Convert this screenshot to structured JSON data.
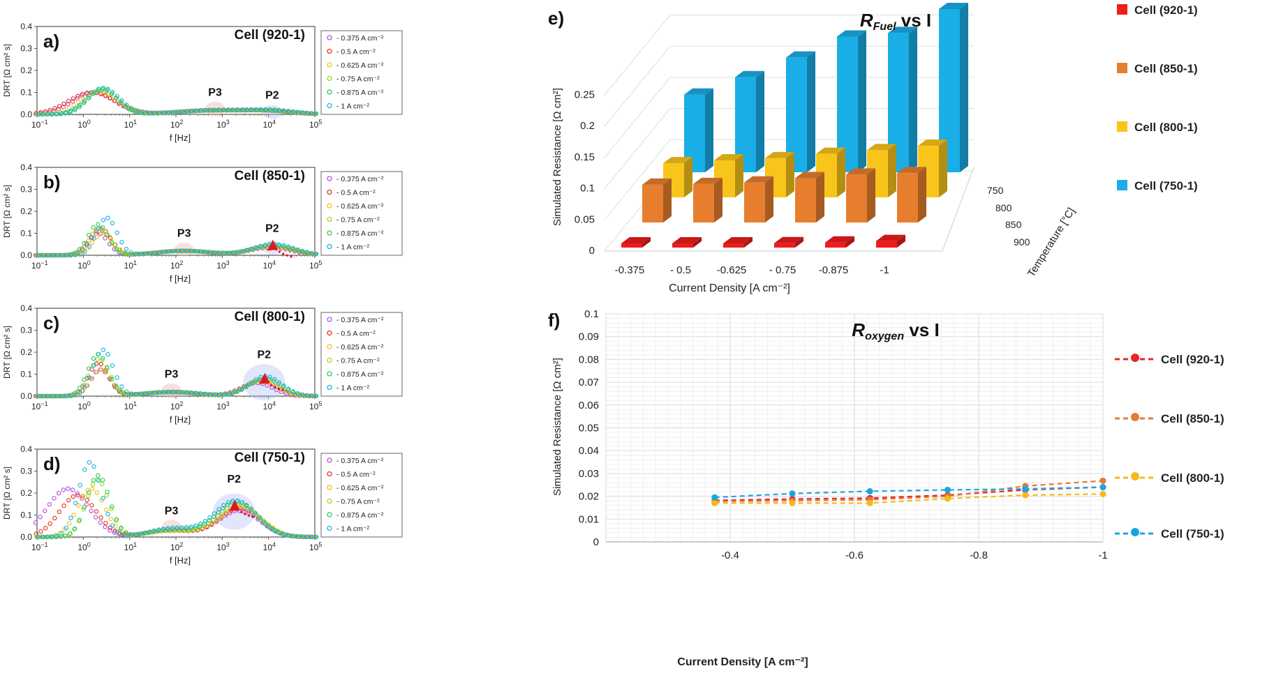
{
  "figure": {
    "series_colors": [
      "#b454e8",
      "#e8372b",
      "#f0c419",
      "#9adc2c",
      "#33cc55",
      "#1fb3e6"
    ],
    "drt_series_labels": [
      "- 0.375 A cm⁻²",
      "- 0.5 A cm⁻²",
      "- 0.625 A cm⁻²",
      "- 0.75 A cm⁻²",
      "- 0.875 A cm⁻²",
      "- 1 A cm⁻²"
    ]
  },
  "chart_data": [
    {
      "type": "scatter",
      "panel": "a)",
      "cell_label": "Cell (920-1)",
      "xlabel": "f [Hz]",
      "ylabel": "DRT [Ω cm² s]",
      "xscale": "log",
      "xlim": [
        0.1,
        100000
      ],
      "ylim": [
        0,
        0.4
      ],
      "yticks": [
        "0.0",
        "0.1",
        "0.2",
        "0.3",
        "0.4"
      ],
      "peak_labels": [
        "P3",
        "P2"
      ],
      "series": [
        {
          "name": "- 0.375 A cm⁻²",
          "peaks": [
            {
              "f": 1.8,
              "h": 0.1,
              "w": 0.45
            },
            {
              "f": 700,
              "h": 0.018,
              "w": 0.8
            },
            {
              "f": 12000,
              "h": 0.012,
              "w": 0.5
            }
          ]
        },
        {
          "name": "- 0.5 A cm⁻²",
          "peaks": [
            {
              "f": 1.6,
              "h": 0.1,
              "w": 0.5
            },
            {
              "f": 700,
              "h": 0.018,
              "w": 0.8
            },
            {
              "f": 12000,
              "h": 0.012,
              "w": 0.5
            }
          ]
        },
        {
          "name": "- 0.625 A cm⁻²",
          "peaks": [
            {
              "f": 2.2,
              "h": 0.105,
              "w": 0.4
            },
            {
              "f": 700,
              "h": 0.018,
              "w": 0.8
            },
            {
              "f": 12000,
              "h": 0.012,
              "w": 0.5
            }
          ]
        },
        {
          "name": "- 0.75 A cm⁻²",
          "peaks": [
            {
              "f": 2.5,
              "h": 0.11,
              "w": 0.35
            },
            {
              "f": 700,
              "h": 0.018,
              "w": 0.8
            },
            {
              "f": 12000,
              "h": 0.012,
              "w": 0.5
            }
          ]
        },
        {
          "name": "- 0.875 A cm⁻²",
          "peaks": [
            {
              "f": 2.5,
              "h": 0.115,
              "w": 0.32
            },
            {
              "f": 700,
              "h": 0.018,
              "w": 0.8
            },
            {
              "f": 12000,
              "h": 0.012,
              "w": 0.5
            }
          ]
        },
        {
          "name": "- 1 A cm⁻²",
          "peaks": [
            {
              "f": 2.5,
              "h": 0.12,
              "w": 0.35
            },
            {
              "f": 700,
              "h": 0.02,
              "w": 0.8
            },
            {
              "f": 12000,
              "h": 0.015,
              "w": 0.5
            }
          ]
        }
      ]
    },
    {
      "type": "scatter",
      "panel": "b)",
      "cell_label": "Cell (850-1)",
      "xlabel": "f [Hz]",
      "ylabel": "DRT [Ω cm² s]",
      "xscale": "log",
      "xlim": [
        0.1,
        100000
      ],
      "ylim": [
        0,
        0.4
      ],
      "yticks": [
        "0.0",
        "0.1",
        "0.2",
        "0.3",
        "0.4"
      ],
      "peak_labels": [
        "P3",
        "P2"
      ],
      "series": [
        {
          "name": "- 0.375 A cm⁻²",
          "peaks": [
            {
              "f": 2.2,
              "h": 0.1,
              "w": 0.22
            },
            {
              "f": 150,
              "h": 0.02,
              "w": 0.6
            },
            {
              "f": 12000,
              "h": 0.035,
              "w": 0.45
            }
          ]
        },
        {
          "name": "- 0.5 A cm⁻²",
          "peaks": [
            {
              "f": 2.5,
              "h": 0.12,
              "w": 0.22
            },
            {
              "f": 150,
              "h": 0.02,
              "w": 0.6
            },
            {
              "f": 12000,
              "h": 0.04,
              "w": 0.45
            }
          ]
        },
        {
          "name": "- 0.625 A cm⁻²",
          "peaks": [
            {
              "f": 2.7,
              "h": 0.1,
              "w": 0.22
            },
            {
              "f": 150,
              "h": 0.02,
              "w": 0.6
            },
            {
              "f": 12000,
              "h": 0.04,
              "w": 0.45
            }
          ]
        },
        {
          "name": "- 0.75 A cm⁻²",
          "peaks": [
            {
              "f": 2.2,
              "h": 0.12,
              "w": 0.22
            },
            {
              "f": 150,
              "h": 0.02,
              "w": 0.6
            },
            {
              "f": 12000,
              "h": 0.045,
              "w": 0.45
            }
          ]
        },
        {
          "name": "- 0.875 A cm⁻²",
          "peaks": [
            {
              "f": 2.0,
              "h": 0.14,
              "w": 0.22
            },
            {
              "f": 150,
              "h": 0.02,
              "w": 0.6
            },
            {
              "f": 12000,
              "h": 0.045,
              "w": 0.45
            }
          ]
        },
        {
          "name": "- 1 A cm⁻²",
          "peaks": [
            {
              "f": 3.0,
              "h": 0.17,
              "w": 0.22
            },
            {
              "f": 150,
              "h": 0.02,
              "w": 0.6
            },
            {
              "f": 12000,
              "h": 0.05,
              "w": 0.45
            }
          ]
        }
      ]
    },
    {
      "type": "scatter",
      "panel": "c)",
      "cell_label": "Cell (800-1)",
      "xlabel": "f [Hz]",
      "ylabel": "DRT [Ω cm² s]",
      "xscale": "log",
      "xlim": [
        0.1,
        100000
      ],
      "ylim": [
        0,
        0.4
      ],
      "yticks": [
        "0.0",
        "0.1",
        "0.2",
        "0.3",
        "0.4"
      ],
      "peak_labels": [
        "P3",
        "P2"
      ],
      "series": [
        {
          "name": "- 0.375 A cm⁻²",
          "peaks": [
            {
              "f": 2.5,
              "h": 0.12,
              "w": 0.22
            },
            {
              "f": 80,
              "h": 0.018,
              "w": 0.6
            },
            {
              "f": 6000,
              "h": 0.06,
              "w": 0.35
            }
          ]
        },
        {
          "name": "- 0.5 A cm⁻²",
          "peaks": [
            {
              "f": 2.2,
              "h": 0.15,
              "w": 0.22
            },
            {
              "f": 80,
              "h": 0.018,
              "w": 0.6
            },
            {
              "f": 7000,
              "h": 0.07,
              "w": 0.35
            }
          ]
        },
        {
          "name": "- 0.625 A cm⁻²",
          "peaks": [
            {
              "f": 2.5,
              "h": 0.12,
              "w": 0.22
            },
            {
              "f": 80,
              "h": 0.018,
              "w": 0.6
            },
            {
              "f": 7000,
              "h": 0.07,
              "w": 0.35
            }
          ]
        },
        {
          "name": "- 0.75 A cm⁻²",
          "peaks": [
            {
              "f": 2.2,
              "h": 0.17,
              "w": 0.22
            },
            {
              "f": 80,
              "h": 0.018,
              "w": 0.6
            },
            {
              "f": 8000,
              "h": 0.08,
              "w": 0.35
            }
          ]
        },
        {
          "name": "- 0.875 A cm⁻²",
          "peaks": [
            {
              "f": 2.0,
              "h": 0.19,
              "w": 0.22
            },
            {
              "f": 80,
              "h": 0.018,
              "w": 0.6
            },
            {
              "f": 8000,
              "h": 0.08,
              "w": 0.35
            }
          ]
        },
        {
          "name": "- 1 A cm⁻²",
          "peaks": [
            {
              "f": 2.5,
              "h": 0.21,
              "w": 0.22
            },
            {
              "f": 80,
              "h": 0.02,
              "w": 0.6
            },
            {
              "f": 8000,
              "h": 0.09,
              "w": 0.35
            }
          ]
        }
      ]
    },
    {
      "type": "scatter",
      "panel": "d)",
      "cell_label": "Cell (750-1)",
      "xlabel": "f [Hz]",
      "ylabel": "DRT [Ω cm² s]",
      "xscale": "log",
      "xlim": [
        0.1,
        100000
      ],
      "ylim": [
        0,
        0.4
      ],
      "yticks": [
        "0.0",
        "0.1",
        "0.2",
        "0.3",
        "0.4"
      ],
      "peak_labels": [
        "P3",
        "P2"
      ],
      "series": [
        {
          "name": "- 0.375 A cm⁻²",
          "peaks": [
            {
              "f": 0.5,
              "h": 0.22,
              "w": 0.45
            },
            {
              "f": 80,
              "h": 0.03,
              "w": 0.5
            },
            {
              "f": 2500,
              "h": 0.12,
              "w": 0.45
            }
          ]
        },
        {
          "name": "- 0.5 A cm⁻²",
          "peaks": [
            {
              "f": 0.8,
              "h": 0.19,
              "w": 0.4
            },
            {
              "f": 80,
              "h": 0.03,
              "w": 0.5
            },
            {
              "f": 2500,
              "h": 0.13,
              "w": 0.45
            }
          ]
        },
        {
          "name": "- 0.625 A cm⁻²",
          "peaks": [
            {
              "f": 1.5,
              "h": 0.22,
              "w": 0.3
            },
            {
              "f": 80,
              "h": 0.03,
              "w": 0.5
            },
            {
              "f": 2500,
              "h": 0.14,
              "w": 0.45
            }
          ]
        },
        {
          "name": "- 0.75 A cm⁻²",
          "peaks": [
            {
              "f": 2.0,
              "h": 0.26,
              "w": 0.25
            },
            {
              "f": 80,
              "h": 0.03,
              "w": 0.5
            },
            {
              "f": 2200,
              "h": 0.15,
              "w": 0.45
            }
          ]
        },
        {
          "name": "- 0.875 A cm⁻²",
          "peaks": [
            {
              "f": 2.0,
              "h": 0.28,
              "w": 0.25
            },
            {
              "f": 80,
              "h": 0.035,
              "w": 0.5
            },
            {
              "f": 2000,
              "h": 0.16,
              "w": 0.45
            }
          ]
        },
        {
          "name": "- 1 A cm⁻²",
          "peaks": [
            {
              "f": 1.3,
              "h": 0.34,
              "w": 0.25
            },
            {
              "f": 80,
              "h": 0.04,
              "w": 0.5
            },
            {
              "f": 1800,
              "h": 0.165,
              "w": 0.45
            }
          ]
        }
      ]
    },
    {
      "type": "bar3d",
      "panel": "e)",
      "title_main": "R",
      "title_sub": "Fuel",
      "title_rest": " vs I",
      "xlabel": "Current Density [A cm⁻²]",
      "ylabel": "Simulated Resistance [Ω cm²]",
      "zlabel": "Temperature [°C]",
      "categories": [
        "-0.375",
        "- 0.5",
        "-0.625",
        "- 0.75",
        "-0.875",
        "-1"
      ],
      "temperatures": [
        "750",
        "800",
        "850",
        "900"
      ],
      "yticks": [
        "0",
        "0.05",
        "0.1",
        "0.15",
        "0.2",
        "0.25"
      ],
      "ylim": [
        0,
        0.25
      ],
      "series": [
        {
          "name": "Cell (920-1)",
          "color": "#ee1c1c",
          "values": [
            0.004,
            0.004,
            0.005,
            0.006,
            0.007,
            0.009
          ]
        },
        {
          "name": "Cell (850-1)",
          "color": "#e67e2e",
          "values": [
            0.052,
            0.053,
            0.055,
            0.061,
            0.066,
            0.068
          ]
        },
        {
          "name": "Cell (800-1)",
          "color": "#f9c51a",
          "values": [
            0.047,
            0.051,
            0.054,
            0.06,
            0.065,
            0.071
          ]
        },
        {
          "name": "Cell (750-1)",
          "color": "#19aee6",
          "values": [
            0.107,
            0.131,
            0.158,
            0.187,
            0.192,
            0.225
          ]
        }
      ]
    },
    {
      "type": "line",
      "panel": "f)",
      "title_main": "R",
      "title_sub": "oxygen",
      "title_rest": " vs I",
      "xlabel": "Current Density [A cm⁻²]",
      "ylabel": "Simulated Resistance [Ω cm²]",
      "x": [
        -0.375,
        -0.5,
        -0.625,
        -0.75,
        -0.875,
        -1
      ],
      "xlim": [
        -0.2,
        -1
      ],
      "ylim": [
        0,
        0.1
      ],
      "xticks": [
        "-0.4",
        "-0.6",
        "-0.8",
        "-1"
      ],
      "yticks": [
        "0",
        "0.01",
        "0.02",
        "0.03",
        "0.04",
        "0.05",
        "0.06",
        "0.07",
        "0.08",
        "0.09",
        "0.1"
      ],
      "series": [
        {
          "name": "Cell (920-1)",
          "color": "#e8262a",
          "values": [
            0.0182,
            0.0188,
            0.0192,
            0.0205,
            0.0228,
            0.024
          ]
        },
        {
          "name": "Cell (850-1)",
          "color": "#e07b39",
          "values": [
            0.0178,
            0.018,
            0.0185,
            0.02,
            0.0245,
            0.0268
          ]
        },
        {
          "name": "Cell (800-1)",
          "color": "#f5b91a",
          "values": [
            0.017,
            0.017,
            0.017,
            0.019,
            0.0205,
            0.021
          ]
        },
        {
          "name": "Cell (750-1)",
          "color": "#1ba5e0",
          "values": [
            0.0195,
            0.0212,
            0.0222,
            0.0228,
            0.0232,
            0.024
          ]
        }
      ]
    }
  ]
}
